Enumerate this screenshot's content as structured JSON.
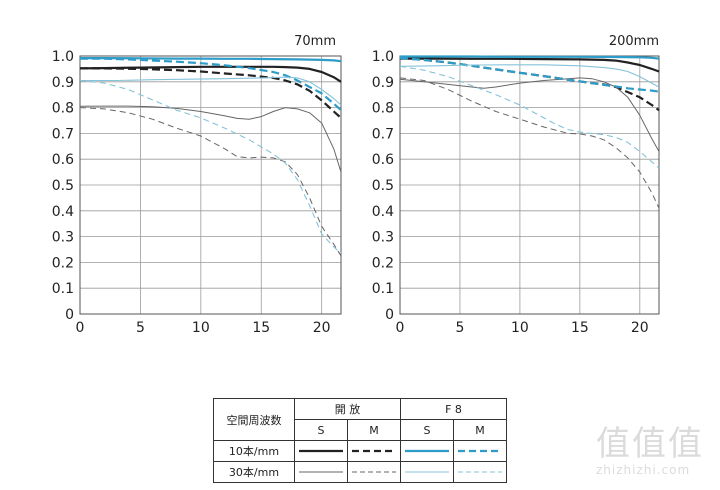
{
  "chart_data": [
    {
      "type": "line",
      "title": "70mm",
      "xlim": [
        0,
        21.6
      ],
      "ylim": [
        0,
        1.0
      ],
      "x_ticks": [
        "0",
        "5",
        "10",
        "15",
        "20"
      ],
      "y_ticks": [
        "0",
        "0.1",
        "0.2",
        "0.3",
        "0.4",
        "0.5",
        "0.6",
        "0.7",
        "0.8",
        "0.9",
        "1.0"
      ],
      "grid": true,
      "series": [
        {
          "legend_ref": "open-10-S",
          "color": "#222222",
          "style": "solid",
          "width": 2.2,
          "x": [
            0,
            2,
            5,
            8,
            10,
            12,
            14,
            16,
            17,
            18,
            19,
            20,
            21,
            21.6
          ],
          "y": [
            0.952,
            0.953,
            0.955,
            0.957,
            0.958,
            0.958,
            0.958,
            0.958,
            0.957,
            0.955,
            0.95,
            0.938,
            0.918,
            0.9
          ]
        },
        {
          "legend_ref": "open-10-M",
          "color": "#222222",
          "style": "dashed",
          "width": 2.2,
          "x": [
            0,
            2,
            5,
            8,
            10,
            12,
            14,
            16,
            17,
            18,
            19,
            20,
            21,
            21.6
          ],
          "y": [
            0.952,
            0.952,
            0.95,
            0.945,
            0.94,
            0.932,
            0.925,
            0.915,
            0.905,
            0.89,
            0.865,
            0.828,
            0.785,
            0.76
          ]
        },
        {
          "legend_ref": "open-30-S",
          "color": "#666666",
          "style": "solid",
          "width": 1.0,
          "x": [
            0,
            2,
            4,
            6,
            8,
            10,
            12,
            13,
            14,
            15,
            16,
            17,
            18,
            19,
            20,
            21,
            21.6
          ],
          "y": [
            0.805,
            0.806,
            0.806,
            0.803,
            0.797,
            0.785,
            0.768,
            0.758,
            0.755,
            0.765,
            0.785,
            0.8,
            0.795,
            0.78,
            0.74,
            0.64,
            0.55
          ]
        },
        {
          "legend_ref": "open-30-M",
          "color": "#666666",
          "style": "dashed",
          "width": 1.0,
          "x": [
            0,
            2,
            4,
            6,
            8,
            10,
            12,
            13,
            14,
            15,
            16,
            17,
            18,
            19,
            20,
            21,
            21.6
          ],
          "y": [
            0.8,
            0.795,
            0.78,
            0.755,
            0.72,
            0.69,
            0.64,
            0.61,
            0.605,
            0.608,
            0.605,
            0.59,
            0.54,
            0.45,
            0.34,
            0.27,
            0.225
          ]
        },
        {
          "legend_ref": "f8-10-S",
          "color": "#2e9cc8",
          "style": "solid",
          "width": 2.2,
          "x": [
            0,
            2,
            5,
            8,
            10,
            12,
            14,
            16,
            18,
            19,
            20,
            21,
            21.6
          ],
          "y": [
            0.992,
            0.992,
            0.991,
            0.99,
            0.99,
            0.989,
            0.989,
            0.988,
            0.987,
            0.986,
            0.985,
            0.983,
            0.98
          ]
        },
        {
          "legend_ref": "f8-10-M",
          "color": "#2e9cc8",
          "style": "dashed",
          "width": 2.2,
          "x": [
            0,
            2,
            5,
            8,
            10,
            12,
            14,
            16,
            17,
            18,
            19,
            20,
            21,
            21.6
          ],
          "y": [
            0.99,
            0.99,
            0.985,
            0.978,
            0.972,
            0.964,
            0.953,
            0.938,
            0.925,
            0.905,
            0.88,
            0.855,
            0.815,
            0.79
          ]
        },
        {
          "legend_ref": "f8-30-S",
          "color": "#85c3da",
          "style": "solid",
          "width": 1.1,
          "x": [
            0,
            3,
            6,
            9,
            12,
            15,
            17,
            18,
            19,
            20,
            21,
            21.6
          ],
          "y": [
            0.905,
            0.905,
            0.908,
            0.91,
            0.912,
            0.915,
            0.918,
            0.915,
            0.9,
            0.87,
            0.835,
            0.81
          ]
        },
        {
          "legend_ref": "f8-30-M",
          "color": "#85c3da",
          "style": "dashed",
          "width": 1.1,
          "x": [
            0,
            2,
            4,
            6,
            8,
            10,
            12,
            14,
            16,
            17,
            18,
            19,
            20,
            21,
            21.6
          ],
          "y": [
            0.905,
            0.895,
            0.87,
            0.83,
            0.79,
            0.76,
            0.72,
            0.675,
            0.62,
            0.585,
            0.52,
            0.42,
            0.31,
            0.26,
            0.235
          ]
        }
      ]
    },
    {
      "type": "line",
      "title": "200mm",
      "xlim": [
        0,
        21.6
      ],
      "ylim": [
        0,
        1.0
      ],
      "x_ticks": [
        "0",
        "5",
        "10",
        "15",
        "20"
      ],
      "y_ticks": [
        "0",
        "0.1",
        "0.2",
        "0.3",
        "0.4",
        "0.5",
        "0.6",
        "0.7",
        "0.8",
        "0.9",
        "1.0"
      ],
      "grid": true,
      "series": [
        {
          "legend_ref": "open-10-S",
          "color": "#222222",
          "style": "solid",
          "width": 2.2,
          "x": [
            0,
            3,
            6,
            9,
            12,
            15,
            17,
            18,
            19,
            20,
            21,
            21.6
          ],
          "y": [
            0.99,
            0.99,
            0.989,
            0.989,
            0.988,
            0.987,
            0.985,
            0.982,
            0.975,
            0.965,
            0.95,
            0.94
          ]
        },
        {
          "legend_ref": "open-10-M",
          "color": "#222222",
          "style": "dashed",
          "width": 2.2,
          "x": [
            0,
            2,
            4,
            6,
            8,
            10,
            12,
            14,
            16,
            17,
            18,
            19,
            20,
            21,
            21.6
          ],
          "y": [
            0.993,
            0.985,
            0.975,
            0.962,
            0.948,
            0.935,
            0.922,
            0.908,
            0.895,
            0.89,
            0.88,
            0.86,
            0.84,
            0.81,
            0.79
          ]
        },
        {
          "legend_ref": "open-30-S",
          "color": "#666666",
          "style": "solid",
          "width": 1.0,
          "x": [
            0,
            2,
            4,
            6,
            7,
            8,
            10,
            12,
            14,
            15,
            16,
            17,
            18,
            19,
            20,
            21,
            21.6
          ],
          "y": [
            0.91,
            0.9,
            0.89,
            0.88,
            0.875,
            0.88,
            0.895,
            0.905,
            0.912,
            0.915,
            0.912,
            0.9,
            0.88,
            0.84,
            0.77,
            0.68,
            0.63
          ]
        },
        {
          "legend_ref": "open-30-M",
          "color": "#666666",
          "style": "dashed",
          "width": 1.0,
          "x": [
            0,
            2,
            4,
            6,
            8,
            10,
            12,
            14,
            15,
            16,
            17,
            18,
            19,
            20,
            21,
            21.6
          ],
          "y": [
            0.915,
            0.905,
            0.87,
            0.825,
            0.785,
            0.755,
            0.725,
            0.7,
            0.698,
            0.69,
            0.675,
            0.645,
            0.605,
            0.55,
            0.47,
            0.41
          ]
        },
        {
          "legend_ref": "f8-10-S",
          "color": "#2e9cc8",
          "style": "solid",
          "width": 2.2,
          "x": [
            0,
            3,
            6,
            9,
            12,
            15,
            18,
            20,
            21,
            21.6
          ],
          "y": [
            0.998,
            0.998,
            0.998,
            0.997,
            0.997,
            0.997,
            0.996,
            0.995,
            0.993,
            0.99
          ]
        },
        {
          "legend_ref": "f8-10-M",
          "color": "#2e9cc8",
          "style": "dashed",
          "width": 2.2,
          "x": [
            0,
            2,
            4,
            6,
            8,
            10,
            12,
            14,
            16,
            17,
            18,
            19,
            20,
            21,
            21.6
          ],
          "y": [
            0.992,
            0.985,
            0.975,
            0.962,
            0.948,
            0.935,
            0.922,
            0.908,
            0.895,
            0.888,
            0.882,
            0.875,
            0.87,
            0.866,
            0.862
          ]
        },
        {
          "legend_ref": "f8-30-S",
          "color": "#85c3da",
          "style": "solid",
          "width": 1.1,
          "x": [
            0,
            3,
            6,
            9,
            12,
            15,
            17,
            18,
            19,
            20,
            21,
            21.6
          ],
          "y": [
            0.96,
            0.962,
            0.965,
            0.966,
            0.966,
            0.962,
            0.955,
            0.95,
            0.94,
            0.92,
            0.895,
            0.88
          ]
        },
        {
          "legend_ref": "f8-30-M",
          "color": "#85c3da",
          "style": "dashed",
          "width": 1.1,
          "x": [
            0,
            2,
            4,
            6,
            8,
            10,
            12,
            13,
            14,
            15,
            16,
            17,
            18,
            19,
            20,
            21,
            21.6
          ],
          "y": [
            0.96,
            0.945,
            0.92,
            0.885,
            0.85,
            0.81,
            0.76,
            0.735,
            0.715,
            0.705,
            0.7,
            0.695,
            0.685,
            0.665,
            0.63,
            0.59,
            0.565
          ]
        }
      ]
    }
  ],
  "legend": {
    "header_label": "空間周波数",
    "group_open": "開 放",
    "group_f8": "F 8",
    "col_s": "S",
    "col_m": "M",
    "row_10": "10本/mm",
    "row_30": "30本/mm"
  },
  "watermark": {
    "glyphs": "值值值",
    "url": "zhizhizhi.com"
  }
}
